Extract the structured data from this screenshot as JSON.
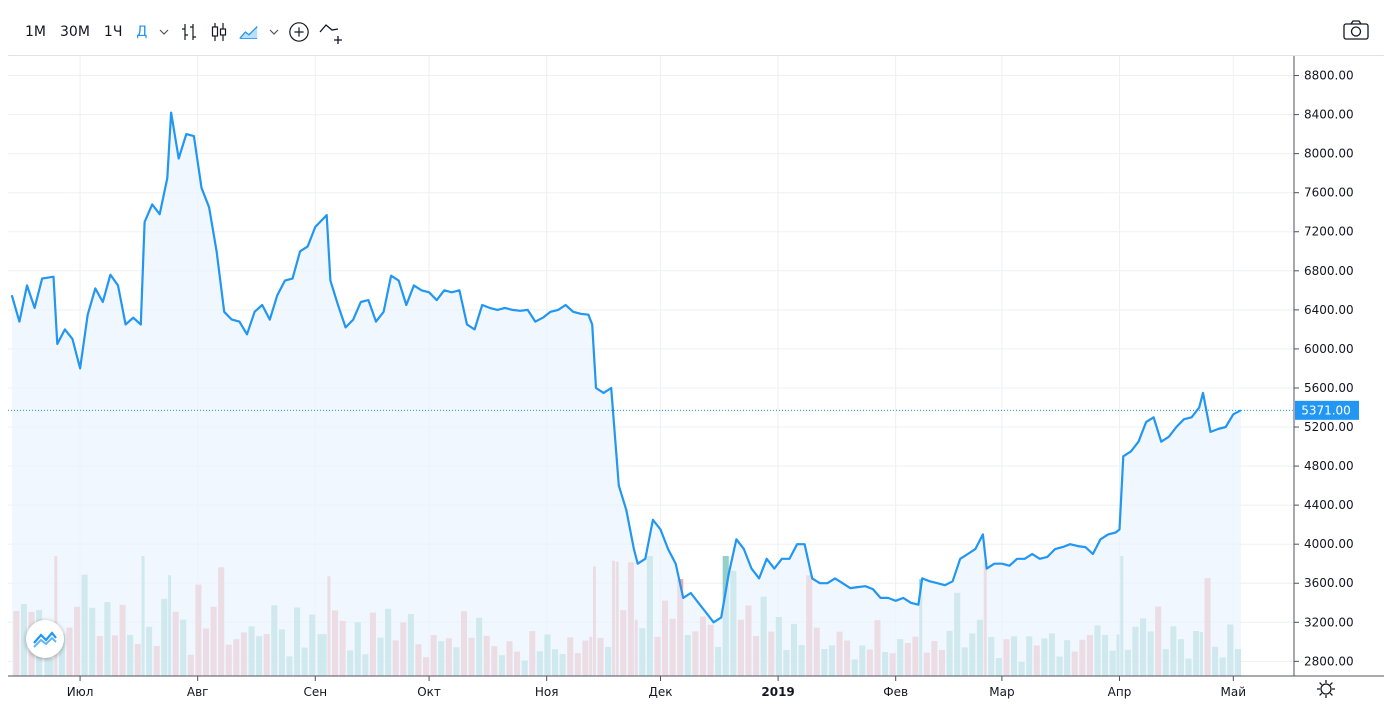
{
  "toolbar": {
    "intervals": [
      "1М",
      "30М",
      "1Ч",
      "Д"
    ],
    "active_interval": "Д",
    "icons": [
      "chevron-down-icon",
      "bar-chart-icon",
      "candlestick-icon",
      "area-chart-icon",
      "chevron-down-icon",
      "add-indicator-icon",
      "compare-icon"
    ],
    "camera_icon": "camera-icon"
  },
  "colors": {
    "line": "#2196f3",
    "area_fill": "#eaf4fd",
    "volume_up": "#7fc8c0",
    "volume_down": "#ef9a9a",
    "grid": "#eef0f3",
    "last_price_bg": "#2196f3"
  },
  "chart_data": {
    "type": "area",
    "title": "",
    "xlabel": "",
    "ylabel": "",
    "y_axis_ticks": [
      "8800.00",
      "8400.00",
      "8000.00",
      "7600.00",
      "7200.00",
      "6800.00",
      "6400.00",
      "6000.00",
      "5600.00",
      "5200.00",
      "4800.00",
      "4400.00",
      "4000.00",
      "3600.00",
      "3200.00",
      "2800.00"
    ],
    "ylim": [
      2650,
      9000
    ],
    "x_axis_labels": [
      "Июл",
      "Авг",
      "Сен",
      "Окт",
      "Ноя",
      "Дек",
      "2019",
      "Фев",
      "Мар",
      "Апр",
      "Май"
    ],
    "x_axis_label_dates": [
      "2018-07-01",
      "2018-08-01",
      "2018-09-01",
      "2018-10-01",
      "2018-11-01",
      "2018-12-01",
      "2019-01-01",
      "2019-02-01",
      "2019-03-01",
      "2019-04-01",
      "2019-05-01"
    ],
    "last_price": "5371.00",
    "grid": true,
    "series": [
      {
        "points": [
          [
            "2018-06-13",
            6550
          ],
          [
            "2018-06-15",
            6280
          ],
          [
            "2018-06-17",
            6650
          ],
          [
            "2018-06-19",
            6420
          ],
          [
            "2018-06-21",
            6720
          ],
          [
            "2018-06-24",
            6740
          ],
          [
            "2018-06-25",
            6050
          ],
          [
            "2018-06-27",
            6200
          ],
          [
            "2018-06-29",
            6100
          ],
          [
            "2018-07-01",
            5800
          ],
          [
            "2018-07-03",
            6350
          ],
          [
            "2018-07-05",
            6620
          ],
          [
            "2018-07-07",
            6480
          ],
          [
            "2018-07-09",
            6760
          ],
          [
            "2018-07-11",
            6650
          ],
          [
            "2018-07-13",
            6250
          ],
          [
            "2018-07-15",
            6320
          ],
          [
            "2018-07-17",
            6250
          ],
          [
            "2018-07-18",
            7300
          ],
          [
            "2018-07-20",
            7480
          ],
          [
            "2018-07-22",
            7380
          ],
          [
            "2018-07-24",
            7750
          ],
          [
            "2018-07-25",
            8420
          ],
          [
            "2018-07-27",
            7950
          ],
          [
            "2018-07-29",
            8200
          ],
          [
            "2018-07-31",
            8180
          ],
          [
            "2018-08-02",
            7650
          ],
          [
            "2018-08-04",
            7450
          ],
          [
            "2018-08-06",
            7000
          ],
          [
            "2018-08-08",
            6380
          ],
          [
            "2018-08-10",
            6300
          ],
          [
            "2018-08-12",
            6280
          ],
          [
            "2018-08-14",
            6150
          ],
          [
            "2018-08-16",
            6380
          ],
          [
            "2018-08-18",
            6450
          ],
          [
            "2018-08-20",
            6300
          ],
          [
            "2018-08-22",
            6550
          ],
          [
            "2018-08-24",
            6700
          ],
          [
            "2018-08-26",
            6720
          ],
          [
            "2018-08-28",
            7000
          ],
          [
            "2018-08-30",
            7050
          ],
          [
            "2018-09-01",
            7250
          ],
          [
            "2018-09-04",
            7370
          ],
          [
            "2018-09-05",
            6700
          ],
          [
            "2018-09-07",
            6450
          ],
          [
            "2018-09-09",
            6220
          ],
          [
            "2018-09-11",
            6300
          ],
          [
            "2018-09-13",
            6480
          ],
          [
            "2018-09-15",
            6500
          ],
          [
            "2018-09-17",
            6280
          ],
          [
            "2018-09-19",
            6380
          ],
          [
            "2018-09-21",
            6750
          ],
          [
            "2018-09-23",
            6700
          ],
          [
            "2018-09-25",
            6450
          ],
          [
            "2018-09-27",
            6650
          ],
          [
            "2018-09-29",
            6600
          ],
          [
            "2018-10-01",
            6580
          ],
          [
            "2018-10-03",
            6500
          ],
          [
            "2018-10-05",
            6600
          ],
          [
            "2018-10-07",
            6580
          ],
          [
            "2018-10-09",
            6600
          ],
          [
            "2018-10-11",
            6250
          ],
          [
            "2018-10-13",
            6200
          ],
          [
            "2018-10-15",
            6450
          ],
          [
            "2018-10-17",
            6420
          ],
          [
            "2018-10-19",
            6400
          ],
          [
            "2018-10-21",
            6420
          ],
          [
            "2018-10-23",
            6400
          ],
          [
            "2018-10-25",
            6390
          ],
          [
            "2018-10-27",
            6400
          ],
          [
            "2018-10-29",
            6280
          ],
          [
            "2018-10-31",
            6320
          ],
          [
            "2018-11-02",
            6380
          ],
          [
            "2018-11-04",
            6400
          ],
          [
            "2018-11-06",
            6450
          ],
          [
            "2018-11-08",
            6380
          ],
          [
            "2018-11-10",
            6360
          ],
          [
            "2018-11-12",
            6350
          ],
          [
            "2018-11-13",
            6250
          ],
          [
            "2018-11-14",
            5600
          ],
          [
            "2018-11-16",
            5550
          ],
          [
            "2018-11-18",
            5600
          ],
          [
            "2018-11-19",
            5100
          ],
          [
            "2018-11-20",
            4600
          ],
          [
            "2018-11-22",
            4350
          ],
          [
            "2018-11-24",
            3950
          ],
          [
            "2018-11-25",
            3800
          ],
          [
            "2018-11-27",
            3850
          ],
          [
            "2018-11-29",
            4250
          ],
          [
            "2018-12-01",
            4150
          ],
          [
            "2018-12-03",
            3950
          ],
          [
            "2018-12-05",
            3800
          ],
          [
            "2018-12-07",
            3450
          ],
          [
            "2018-12-09",
            3500
          ],
          [
            "2018-12-11",
            3400
          ],
          [
            "2018-12-13",
            3300
          ],
          [
            "2018-12-15",
            3200
          ],
          [
            "2018-12-17",
            3250
          ],
          [
            "2018-12-19",
            3700
          ],
          [
            "2018-12-21",
            4050
          ],
          [
            "2018-12-23",
            3950
          ],
          [
            "2018-12-25",
            3750
          ],
          [
            "2018-12-27",
            3650
          ],
          [
            "2018-12-29",
            3850
          ],
          [
            "2018-12-31",
            3750
          ],
          [
            "2019-01-02",
            3850
          ],
          [
            "2019-01-04",
            3850
          ],
          [
            "2019-01-06",
            4000
          ],
          [
            "2019-01-08",
            4000
          ],
          [
            "2019-01-10",
            3650
          ],
          [
            "2019-01-12",
            3600
          ],
          [
            "2019-01-14",
            3600
          ],
          [
            "2019-01-16",
            3650
          ],
          [
            "2019-01-18",
            3600
          ],
          [
            "2019-01-20",
            3550
          ],
          [
            "2019-01-22",
            3560
          ],
          [
            "2019-01-24",
            3570
          ],
          [
            "2019-01-26",
            3540
          ],
          [
            "2019-01-28",
            3450
          ],
          [
            "2019-01-30",
            3450
          ],
          [
            "2019-02-01",
            3420
          ],
          [
            "2019-02-03",
            3450
          ],
          [
            "2019-02-05",
            3400
          ],
          [
            "2019-02-07",
            3380
          ],
          [
            "2019-02-08",
            3650
          ],
          [
            "2019-02-10",
            3620
          ],
          [
            "2019-02-12",
            3600
          ],
          [
            "2019-02-14",
            3580
          ],
          [
            "2019-02-16",
            3620
          ],
          [
            "2019-02-18",
            3850
          ],
          [
            "2019-02-20",
            3900
          ],
          [
            "2019-02-22",
            3950
          ],
          [
            "2019-02-24",
            4100
          ],
          [
            "2019-02-25",
            3750
          ],
          [
            "2019-02-27",
            3800
          ],
          [
            "2019-03-01",
            3800
          ],
          [
            "2019-03-03",
            3780
          ],
          [
            "2019-03-05",
            3850
          ],
          [
            "2019-03-07",
            3850
          ],
          [
            "2019-03-09",
            3900
          ],
          [
            "2019-03-11",
            3850
          ],
          [
            "2019-03-13",
            3870
          ],
          [
            "2019-03-15",
            3950
          ],
          [
            "2019-03-17",
            3970
          ],
          [
            "2019-03-19",
            4000
          ],
          [
            "2019-03-21",
            3980
          ],
          [
            "2019-03-23",
            3970
          ],
          [
            "2019-03-25",
            3900
          ],
          [
            "2019-03-27",
            4050
          ],
          [
            "2019-03-29",
            4100
          ],
          [
            "2019-03-31",
            4120
          ],
          [
            "2019-04-01",
            4150
          ],
          [
            "2019-04-02",
            4900
          ],
          [
            "2019-04-04",
            4950
          ],
          [
            "2019-04-06",
            5050
          ],
          [
            "2019-04-08",
            5250
          ],
          [
            "2019-04-10",
            5300
          ],
          [
            "2019-04-12",
            5050
          ],
          [
            "2019-04-14",
            5100
          ],
          [
            "2019-04-16",
            5200
          ],
          [
            "2019-04-18",
            5280
          ],
          [
            "2019-04-20",
            5300
          ],
          [
            "2019-04-22",
            5400
          ],
          [
            "2019-04-23",
            5550
          ],
          [
            "2019-04-25",
            5150
          ],
          [
            "2019-04-27",
            5180
          ],
          [
            "2019-04-29",
            5200
          ],
          [
            "2019-05-01",
            5330
          ],
          [
            "2019-05-03",
            5371
          ]
        ]
      }
    ]
  }
}
